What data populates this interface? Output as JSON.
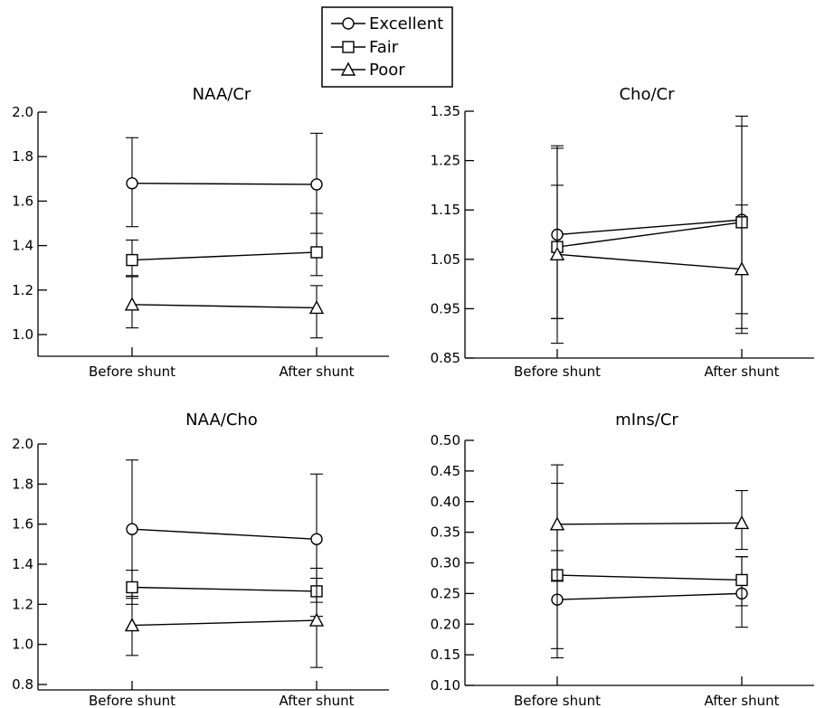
{
  "legend": {
    "entries": [
      {
        "name": "Excellent",
        "marker": "circle"
      },
      {
        "name": "Fair",
        "marker": "square"
      },
      {
        "name": "Poor",
        "marker": "triangle"
      }
    ]
  },
  "chart_data": [
    {
      "type": "line",
      "title": "NAA/Cr",
      "categories": [
        "Before shunt",
        "After shunt"
      ],
      "ylim": [
        0.9,
        2.0
      ],
      "yticks": [
        1.0,
        1.2,
        1.4,
        1.6,
        1.8,
        2.0
      ],
      "ytick_labels": [
        "1.0",
        "1.2",
        "1.4",
        "1.6",
        "1.8",
        "2.0"
      ],
      "series": [
        {
          "name": "Excellent",
          "values": [
            1.68,
            1.675
          ],
          "err_low": [
            1.485,
            1.455
          ],
          "err_high": [
            1.885,
            1.905
          ]
        },
        {
          "name": "Fair",
          "values": [
            1.335,
            1.37
          ],
          "err_low": [
            1.265,
            1.265
          ],
          "err_high": [
            1.425,
            1.545
          ]
        },
        {
          "name": "Poor",
          "values": [
            1.135,
            1.12
          ],
          "err_low": [
            1.03,
            0.985
          ],
          "err_high": [
            1.26,
            1.22
          ]
        }
      ]
    },
    {
      "type": "line",
      "title": "Cho/Cr",
      "categories": [
        "Before shunt",
        "After shunt"
      ],
      "ylim": [
        0.85,
        1.35
      ],
      "yticks": [
        0.85,
        0.95,
        1.05,
        1.15,
        1.25,
        1.35
      ],
      "ytick_labels": [
        "0.85",
        "0.95",
        "1.05",
        "1.15",
        "1.25",
        "1.35"
      ],
      "series": [
        {
          "name": "Excellent",
          "values": [
            1.1,
            1.13
          ],
          "err_low": [
            0.93,
            0.94
          ],
          "err_high": [
            1.28,
            1.34
          ]
        },
        {
          "name": "Fair",
          "values": [
            1.075,
            1.125
          ],
          "err_low": [
            0.88,
            0.91
          ],
          "err_high": [
            1.275,
            1.32
          ]
        },
        {
          "name": "Poor",
          "values": [
            1.06,
            1.03
          ],
          "err_low": [
            0.93,
            0.9
          ],
          "err_high": [
            1.2,
            1.16
          ]
        }
      ]
    },
    {
      "type": "line",
      "title": "NAA/Cho",
      "categories": [
        "Before shunt",
        "After shunt"
      ],
      "ylim": [
        0.8,
        2.0
      ],
      "yticks": [
        0.8,
        1.0,
        1.2,
        1.4,
        1.6,
        1.8,
        2.0
      ],
      "ytick_labels": [
        "0.8",
        "1.0",
        "1.2",
        "1.4",
        "1.6",
        "1.8",
        "2.0"
      ],
      "series": [
        {
          "name": "Excellent",
          "values": [
            1.575,
            1.525
          ],
          "err_low": [
            1.23,
            1.21
          ],
          "err_high": [
            1.92,
            1.85
          ]
        },
        {
          "name": "Fair",
          "values": [
            1.285,
            1.265
          ],
          "err_low": [
            1.2,
            1.14
          ],
          "err_high": [
            1.37,
            1.38
          ]
        },
        {
          "name": "Poor",
          "values": [
            1.095,
            1.12
          ],
          "err_low": [
            0.945,
            0.885
          ],
          "err_high": [
            1.24,
            1.33
          ]
        }
      ]
    },
    {
      "type": "line",
      "title": "mIns/Cr",
      "categories": [
        "Before shunt",
        "After shunt"
      ],
      "ylim": [
        0.1,
        0.5
      ],
      "yticks": [
        0.1,
        0.15,
        0.2,
        0.25,
        0.3,
        0.35,
        0.4,
        0.45,
        0.5
      ],
      "ytick_labels": [
        "0.10",
        "0.15",
        "0.20",
        "0.25",
        "0.30",
        "0.35",
        "0.40",
        "0.45",
        "0.50"
      ],
      "series": [
        {
          "name": "Excellent",
          "values": [
            0.24,
            0.25
          ],
          "err_low": [
            0.145,
            0.195
          ],
          "err_high": [
            0.32,
            0.31
          ]
        },
        {
          "name": "Fair",
          "values": [
            0.28,
            0.272
          ],
          "err_low": [
            0.16,
            0.23
          ],
          "err_high": [
            0.43,
            0.31
          ]
        },
        {
          "name": "Poor",
          "values": [
            0.363,
            0.365
          ],
          "err_low": [
            0.27,
            0.322
          ],
          "err_high": [
            0.46,
            0.418
          ]
        }
      ]
    }
  ]
}
